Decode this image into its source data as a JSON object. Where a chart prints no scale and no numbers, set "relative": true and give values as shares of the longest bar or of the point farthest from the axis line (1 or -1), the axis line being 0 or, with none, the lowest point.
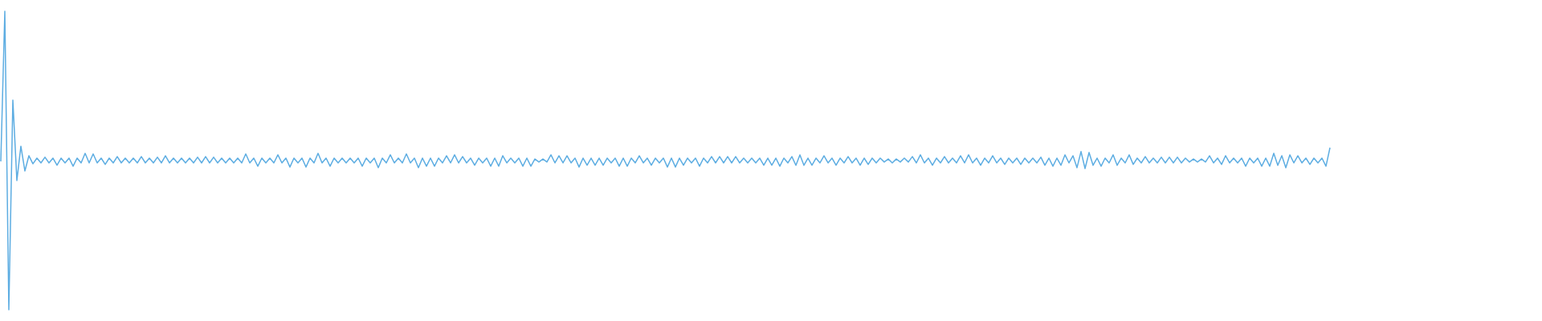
{
  "chart_data": {
    "type": "line",
    "relative": true,
    "color": "#5dade2",
    "categories": [
      null,
      null,
      null,
      null,
      null,
      null,
      null,
      null,
      null,
      null,
      null,
      null,
      null,
      null,
      null,
      null,
      null,
      null,
      null,
      null,
      null,
      null,
      null,
      null,
      null,
      null,
      null,
      null,
      null,
      null,
      null,
      null,
      null,
      null,
      null,
      null,
      null,
      null,
      null,
      null,
      null,
      null,
      null,
      null,
      null,
      null,
      null,
      null,
      null,
      null,
      null,
      null,
      null,
      null,
      null,
      null,
      null,
      null,
      null,
      null,
      null,
      null,
      null,
      null,
      null,
      null,
      null,
      null,
      null,
      null,
      null,
      null,
      null,
      null,
      null,
      null,
      null,
      null,
      null,
      null,
      null,
      null,
      null,
      null,
      null,
      null,
      null,
      null,
      null,
      null,
      null,
      null,
      null,
      null,
      null,
      null,
      null,
      null,
      null,
      null,
      null,
      null,
      null,
      null,
      null,
      null,
      null,
      null,
      null,
      null,
      null,
      null,
      null,
      null,
      null,
      null,
      null,
      null,
      null,
      null,
      null,
      null,
      null,
      null,
      null,
      null,
      null,
      null,
      null,
      null,
      null,
      null,
      null,
      null,
      null,
      null,
      null,
      null,
      null,
      null,
      null,
      null,
      null,
      null,
      null,
      null,
      null,
      null,
      null,
      null,
      null,
      null,
      null,
      null,
      null,
      null,
      null,
      null,
      null,
      null,
      null,
      null,
      null,
      null,
      null,
      null,
      null,
      null,
      null,
      null,
      null,
      null,
      null,
      null,
      null,
      null,
      null,
      null,
      null,
      null,
      null,
      null,
      null,
      null,
      null,
      null,
      null,
      null,
      null,
      null,
      null,
      null,
      null,
      null,
      null,
      null,
      null,
      null,
      null,
      null,
      null,
      null,
      null,
      null,
      null,
      null,
      null,
      null,
      null,
      null,
      null,
      null,
      null,
      null,
      null,
      null,
      null,
      null,
      null,
      null,
      null,
      null,
      null,
      null,
      null,
      null,
      null,
      null,
      null,
      null,
      null,
      null,
      null,
      null,
      null,
      null,
      null,
      null,
      null,
      null,
      null,
      null,
      null,
      null,
      null,
      null,
      null,
      null,
      null,
      null,
      null,
      null,
      null,
      null,
      null,
      null,
      null,
      null,
      null,
      null,
      null,
      null,
      null,
      null,
      null,
      null,
      null,
      null,
      null,
      null,
      null,
      null,
      null,
      null,
      null,
      null,
      null,
      null,
      null,
      null,
      null,
      null,
      null,
      null,
      null,
      null,
      null,
      null,
      null,
      null,
      null,
      null,
      null,
      null,
      null,
      null,
      null,
      null,
      null,
      null,
      null,
      null,
      null,
      null,
      null,
      null,
      null,
      null,
      null,
      null,
      null,
      null,
      null,
      null,
      null,
      null,
      null,
      null,
      null,
      null,
      null,
      null,
      null,
      null,
      null,
      null,
      null,
      null,
      null,
      null,
      null,
      null
    ],
    "values": [
      0.497,
      1,
      0,
      0.702,
      0.433,
      0.548,
      0.465,
      0.516,
      0.489,
      0.508,
      0.492,
      0.511,
      0.492,
      0.508,
      0.484,
      0.508,
      0.492,
      0.508,
      0.481,
      0.508,
      0.492,
      0.524,
      0.492,
      0.522,
      0.492,
      0.508,
      0.487,
      0.508,
      0.492,
      0.513,
      0.492,
      0.508,
      0.492,
      0.508,
      0.492,
      0.513,
      0.492,
      0.508,
      0.492,
      0.511,
      0.492,
      0.516,
      0.492,
      0.508,
      0.492,
      0.508,
      0.492,
      0.508,
      0.492,
      0.511,
      0.492,
      0.513,
      0.492,
      0.511,
      0.492,
      0.508,
      0.492,
      0.508,
      0.492,
      0.508,
      0.492,
      0.522,
      0.492,
      0.508,
      0.481,
      0.508,
      0.492,
      0.508,
      0.492,
      0.519,
      0.492,
      0.508,
      0.478,
      0.508,
      0.492,
      0.508,
      0.478,
      0.508,
      0.492,
      0.524,
      0.492,
      0.508,
      0.481,
      0.508,
      0.492,
      0.508,
      0.492,
      0.508,
      0.492,
      0.508,
      0.481,
      0.508,
      0.492,
      0.508,
      0.476,
      0.508,
      0.492,
      0.519,
      0.492,
      0.508,
      0.492,
      0.522,
      0.492,
      0.508,
      0.476,
      0.508,
      0.481,
      0.508,
      0.481,
      0.508,
      0.492,
      0.516,
      0.492,
      0.519,
      0.492,
      0.513,
      0.492,
      0.508,
      0.484,
      0.508,
      0.492,
      0.508,
      0.481,
      0.508,
      0.481,
      0.516,
      0.492,
      0.508,
      0.492,
      0.508,
      0.481,
      0.508,
      0.481,
      0.505,
      0.495,
      0.505,
      0.495,
      0.519,
      0.492,
      0.516,
      0.492,
      0.516,
      0.492,
      0.508,
      0.478,
      0.508,
      0.484,
      0.508,
      0.484,
      0.508,
      0.484,
      0.508,
      0.492,
      0.508,
      0.481,
      0.508,
      0.481,
      0.508,
      0.492,
      0.516,
      0.492,
      0.508,
      0.484,
      0.508,
      0.492,
      0.508,
      0.478,
      0.508,
      0.478,
      0.508,
      0.484,
      0.508,
      0.492,
      0.508,
      0.481,
      0.508,
      0.492,
      0.513,
      0.492,
      0.513,
      0.492,
      0.513,
      0.492,
      0.513,
      0.492,
      0.508,
      0.492,
      0.508,
      0.492,
      0.508,
      0.484,
      0.508,
      0.484,
      0.508,
      0.481,
      0.508,
      0.492,
      0.513,
      0.484,
      0.519,
      0.484,
      0.508,
      0.484,
      0.508,
      0.492,
      0.516,
      0.492,
      0.508,
      0.484,
      0.508,
      0.492,
      0.513,
      0.492,
      0.508,
      0.484,
      0.508,
      0.487,
      0.508,
      0.492,
      0.508,
      0.495,
      0.505,
      0.492,
      0.505,
      0.495,
      0.508,
      0.495,
      0.513,
      0.492,
      0.519,
      0.492,
      0.508,
      0.484,
      0.508,
      0.492,
      0.513,
      0.492,
      0.508,
      0.492,
      0.516,
      0.492,
      0.519,
      0.492,
      0.508,
      0.484,
      0.508,
      0.492,
      0.516,
      0.492,
      0.508,
      0.487,
      0.508,
      0.492,
      0.508,
      0.487,
      0.508,
      0.492,
      0.508,
      0.492,
      0.511,
      0.484,
      0.508,
      0.481,
      0.508,
      0.484,
      0.519,
      0.492,
      0.516,
      0.476,
      0.53,
      0.473,
      0.527,
      0.484,
      0.508,
      0.481,
      0.508,
      0.492,
      0.519,
      0.484,
      0.508,
      0.492,
      0.519,
      0.487,
      0.508,
      0.492,
      0.513,
      0.492,
      0.508,
      0.492,
      0.511,
      0.492,
      0.511,
      0.492,
      0.511,
      0.492,
      0.508,
      0.495,
      0.505,
      0.495,
      0.505,
      0.495,
      0.516,
      0.492,
      0.508,
      0.487,
      0.516,
      0.492,
      0.508,
      0.492,
      0.508,
      0.481,
      0.508,
      0.492,
      0.508,
      0.481,
      0.508,
      0.481,
      0.524,
      0.484,
      0.516,
      0.476,
      0.519,
      0.492,
      0.516,
      0.492,
      0.508,
      0.487,
      0.508,
      0.492,
      0.508,
      0.481,
      0.543
    ]
  }
}
